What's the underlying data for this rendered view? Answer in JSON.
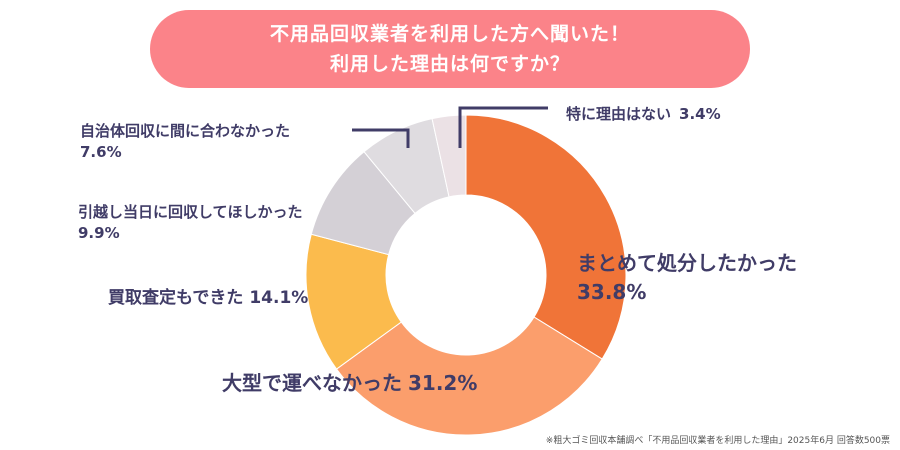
{
  "title": {
    "line1": "不用品回収業者を利用した方へ聞いた！",
    "line2": "利用した理由は何ですか？"
  },
  "source_note": "※粗大ゴミ回収本舗調べ「不用品回収業者を利用した理由」2025年6月 回答数500票",
  "colors": {
    "banner": "#fb8389",
    "label_text": "#403c67",
    "leader_line": "#403c67"
  },
  "chart_data": {
    "type": "pie",
    "donut": true,
    "categories": [
      "まとめて処分したかった",
      "大型で運べなかった",
      "買取査定もできた",
      "引越し当日に回収してほしかった",
      "自治体回収に間に合わなかった",
      "特に理由はない"
    ],
    "values": [
      33.8,
      31.2,
      14.1,
      9.9,
      7.6,
      3.4
    ],
    "unit": "%",
    "colors": [
      "#f07438",
      "#fb9e6c",
      "#fbbb4d",
      "#d4d0d6",
      "#dfdce0",
      "#ebe1e5"
    ],
    "labels": [
      {
        "name": "まとめて処分したかった",
        "value": "33.8%"
      },
      {
        "name": "大型で運べなかった",
        "value": "31.2%"
      },
      {
        "name": "買取査定もできた",
        "value": "14.1%"
      },
      {
        "name": "引越し当日に回収してほしかった",
        "value": "9.9%"
      },
      {
        "name": "自治体回収に間に合わなかった",
        "value": "7.6%"
      },
      {
        "name": "特に理由はない",
        "value": "3.4%"
      }
    ]
  }
}
